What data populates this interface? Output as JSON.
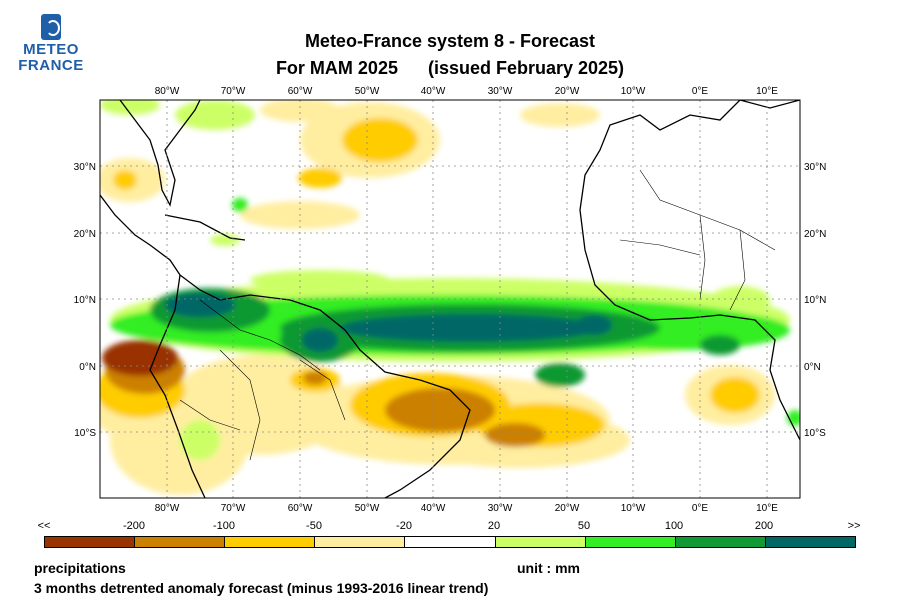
{
  "logo": {
    "line1": "METEO",
    "line2": "FRANCE"
  },
  "title": {
    "line1": "Meteo-France system 8  -  Forecast",
    "season": "For MAM 2025",
    "issued": "(issued February 2025)"
  },
  "map": {
    "lon_labels": [
      "80°W",
      "70°W",
      "60°W",
      "50°W",
      "40°W",
      "30°W",
      "20°W",
      "10°W",
      "0°E",
      "10°E"
    ],
    "lat_labels_left": [
      "30°N",
      "20°N",
      "10°N",
      "0°N",
      "10°S"
    ],
    "lat_labels_right": [
      "30°N",
      "20°N",
      "10°N",
      "0°N",
      "10°S"
    ],
    "extent": {
      "lon_min": -90,
      "lon_max": 15,
      "lat_min": -20,
      "lat_max": 40
    }
  },
  "legend": {
    "ticks": [
      "<<",
      "-200",
      "-100",
      "-50",
      "-20",
      "20",
      "50",
      "100",
      "200",
      ">>"
    ],
    "colors": [
      "#993300",
      "#cc8000",
      "#ffcc00",
      "#ffeea0",
      "#ffffff",
      "#ccff66",
      "#33ee22",
      "#119933",
      "#006666"
    ]
  },
  "footer": {
    "variable": "precipitations",
    "unit": "unit : mm",
    "description": "3 months detrented anomaly forecast (minus 1993-2016 linear trend)"
  }
}
